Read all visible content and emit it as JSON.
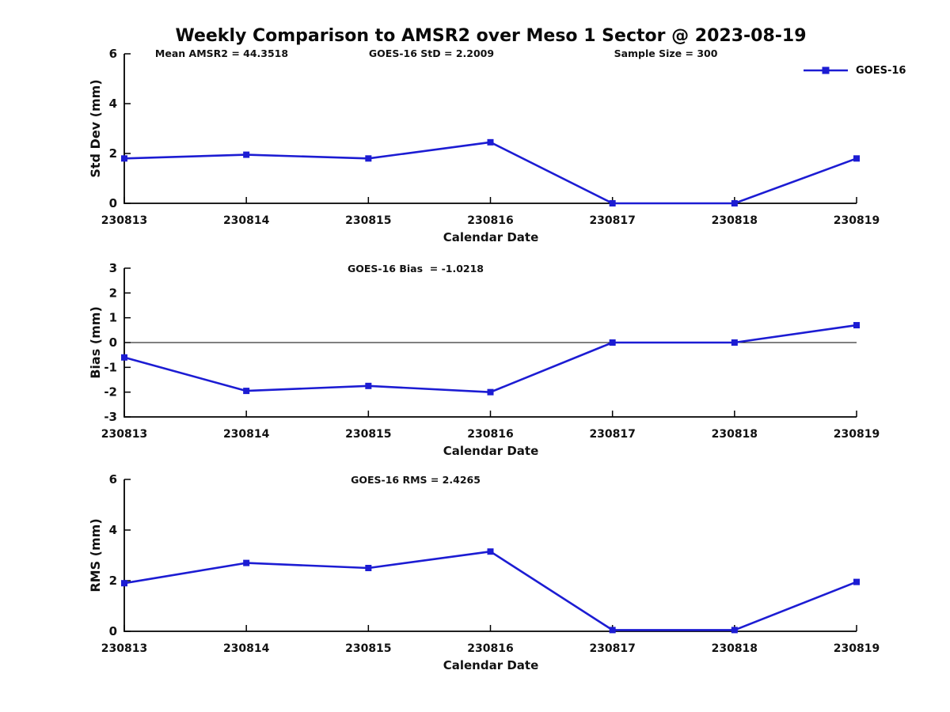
{
  "title": "Weekly Comparison to AMSR2 over Meso 1 Sector @ 2023-08-19",
  "legend": {
    "label": "GOES-16",
    "marker": "filled-square",
    "color": "#1c1cd3"
  },
  "colors": {
    "series": "#1c1cd3",
    "axis": "#000000",
    "text": "#121212"
  },
  "xlabel": "Calendar Date",
  "categories": [
    "230813",
    "230814",
    "230815",
    "230816",
    "230817",
    "230818",
    "230819"
  ],
  "chart_data": [
    {
      "type": "line",
      "name": "std-dev-panel",
      "ylabel": "Std Dev (mm)",
      "xlabel": "Calendar Date",
      "ylim": [
        0,
        6
      ],
      "yticks": [
        0,
        2,
        4,
        6
      ],
      "grid": false,
      "legend_position": "top-right",
      "annotations": [
        "Mean AMSR2 = 44.3518",
        "GOES-16 StD = 2.2009",
        "Sample Size = 300"
      ],
      "categories": [
        "230813",
        "230814",
        "230815",
        "230816",
        "230817",
        "230818",
        "230819"
      ],
      "series": [
        {
          "name": "GOES-16",
          "values": [
            1.8,
            1.95,
            1.8,
            2.45,
            0,
            0,
            1.8
          ]
        }
      ]
    },
    {
      "type": "line",
      "name": "bias-panel",
      "title": "GOES-16 Bias  = -1.0218",
      "ylabel": "Bias (mm)",
      "xlabel": "Calendar Date",
      "ylim": [
        -3,
        3
      ],
      "yticks": [
        3,
        2,
        1,
        0,
        -1,
        -2,
        -3
      ],
      "zero_line": true,
      "grid": false,
      "categories": [
        "230813",
        "230814",
        "230815",
        "230816",
        "230817",
        "230818",
        "230819"
      ],
      "series": [
        {
          "name": "GOES-16",
          "values": [
            -0.6,
            -1.95,
            -1.75,
            -2.0,
            0,
            0,
            0.7
          ]
        }
      ]
    },
    {
      "type": "line",
      "name": "rms-panel",
      "title": "GOES-16 RMS = 2.4265",
      "ylabel": "RMS (mm)",
      "xlabel": "Calendar Date",
      "ylim": [
        0,
        6
      ],
      "yticks": [
        0,
        2,
        4,
        6
      ],
      "grid": false,
      "categories": [
        "230813",
        "230814",
        "230815",
        "230816",
        "230817",
        "230818",
        "230819"
      ],
      "series": [
        {
          "name": "GOES-16",
          "values": [
            1.9,
            2.7,
            2.5,
            3.15,
            0.05,
            0.05,
            1.95
          ]
        }
      ]
    }
  ]
}
